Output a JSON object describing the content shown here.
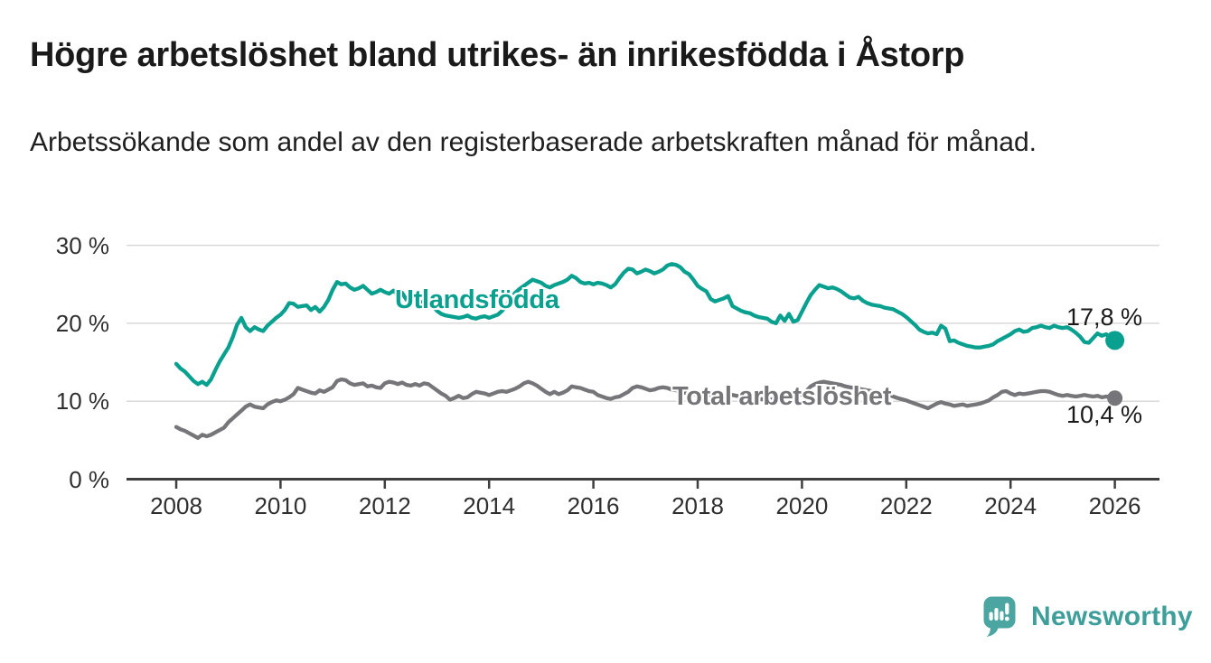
{
  "header": {
    "title": "Högre arbetslöshet bland utrikes- än inrikesfödda i Åstorp",
    "subtitle": "Arbetssökande som andel av den registerbaserade arbetskraften månad för månad."
  },
  "chart_data": {
    "type": "line",
    "title": "Högre arbetslöshet bland utrikes- än inrikesfödda i Åstorp",
    "subtitle": "Arbetssökande som andel av den registerbaserade arbetskraften månad för månad.",
    "unit": "%",
    "x_start_year": 2008,
    "x_step_months": 1,
    "x_end_label": "2026",
    "x_ticks": [
      2008,
      2010,
      2012,
      2014,
      2016,
      2018,
      2020,
      2022,
      2024,
      2026
    ],
    "y_ticks": [
      {
        "value": 0,
        "label": "0 %"
      },
      {
        "value": 10,
        "label": "10 %"
      },
      {
        "value": 20,
        "label": "20 %"
      },
      {
        "value": 30,
        "label": "30 %"
      }
    ],
    "ylim": [
      0,
      31
    ],
    "grid": "horizontal",
    "legend": "inline-labels",
    "axis_color": "#3e3e3e",
    "grid_color": "#d9d9d9",
    "series": [
      {
        "name": "Total arbetslöshet",
        "color": "#76767a",
        "end_label": "10,4 %",
        "end_value": 10.4,
        "dot_radius": 8.5,
        "values": [
          6.7,
          6.4,
          6.2,
          5.9,
          5.6,
          5.3,
          5.7,
          5.5,
          5.7,
          6.0,
          6.3,
          6.6,
          7.3,
          7.8,
          8.3,
          8.8,
          9.3,
          9.6,
          9.3,
          9.2,
          9.1,
          9.6,
          9.9,
          10.1,
          10.0,
          10.2,
          10.5,
          10.9,
          11.7,
          11.5,
          11.3,
          11.1,
          11.0,
          11.4,
          11.2,
          11.5,
          11.8,
          12.6,
          12.8,
          12.7,
          12.3,
          12.1,
          12.2,
          12.3,
          11.9,
          12.0,
          11.8,
          11.7,
          12.3,
          12.5,
          12.4,
          12.2,
          12.4,
          12.1,
          12.0,
          12.2,
          12.0,
          12.3,
          12.2,
          11.8,
          11.4,
          11.0,
          10.7,
          10.2,
          10.4,
          10.7,
          10.4,
          10.5,
          10.9,
          11.2,
          11.1,
          11.0,
          10.8,
          11.0,
          11.2,
          11.3,
          11.2,
          11.4,
          11.6,
          11.9,
          12.3,
          12.5,
          12.3,
          12.0,
          11.6,
          11.2,
          10.9,
          11.2,
          10.9,
          11.1,
          11.4,
          11.9,
          11.8,
          11.7,
          11.5,
          11.3,
          11.2,
          10.8,
          10.6,
          10.4,
          10.3,
          10.5,
          10.6,
          10.9,
          11.2,
          11.7,
          11.9,
          11.8,
          11.6,
          11.4,
          11.5,
          11.7,
          11.8,
          11.7,
          11.5,
          11.4,
          11.3,
          11.1,
          11.0,
          10.9,
          10.8,
          10.75,
          10.7,
          10.65,
          10.6,
          10.65,
          10.7,
          10.75,
          10.8,
          10.7,
          10.6,
          10.55,
          10.5,
          10.4,
          10.3,
          10.25,
          10.2,
          10.25,
          10.3,
          10.35,
          10.4,
          10.5,
          10.6,
          10.7,
          10.9,
          11.3,
          11.9,
          12.2,
          12.4,
          12.5,
          12.4,
          12.3,
          12.2,
          12.1,
          11.9,
          11.8,
          11.7,
          11.6,
          11.5,
          11.4,
          11.3,
          11.2,
          11.1,
          10.95,
          10.8,
          10.6,
          10.4,
          10.25,
          10.1,
          9.9,
          9.7,
          9.5,
          9.3,
          9.1,
          9.4,
          9.7,
          9.9,
          9.7,
          9.6,
          9.4,
          9.5,
          9.6,
          9.4,
          9.5,
          9.6,
          9.7,
          9.9,
          10.1,
          10.5,
          10.8,
          11.2,
          11.3,
          11.0,
          10.8,
          11.0,
          10.9,
          11.0,
          11.1,
          11.2,
          11.3,
          11.3,
          11.2,
          11.0,
          10.8,
          10.7,
          10.8,
          10.7,
          10.6,
          10.7,
          10.8,
          10.7,
          10.6,
          10.7,
          10.5,
          10.6,
          10.5,
          10.4
        ]
      },
      {
        "name": "Utlandsfödda",
        "color": "#0aa08f",
        "end_label": "17,8 %",
        "end_value": 17.8,
        "dot_radius": 10.5,
        "values": [
          14.8,
          14.2,
          13.8,
          13.2,
          12.6,
          12.2,
          12.5,
          12.1,
          12.8,
          14.0,
          15.1,
          16.0,
          16.9,
          18.2,
          19.8,
          20.7,
          19.5,
          19.0,
          19.5,
          19.2,
          19.0,
          19.7,
          20.2,
          20.7,
          21.1,
          21.7,
          22.6,
          22.5,
          22.1,
          22.2,
          22.3,
          21.7,
          22.1,
          21.5,
          22.1,
          23.0,
          24.3,
          25.3,
          25.0,
          25.1,
          24.6,
          24.3,
          24.5,
          24.8,
          24.3,
          23.8,
          24.0,
          24.3,
          24.0,
          23.8,
          24.2,
          23.6,
          23.9,
          23.0,
          22.8,
          23.3,
          22.6,
          22.8,
          22.4,
          22.2,
          21.6,
          21.2,
          21.0,
          20.9,
          20.8,
          20.7,
          20.8,
          21.0,
          20.7,
          20.6,
          20.8,
          20.9,
          20.7,
          20.9,
          21.1,
          21.6,
          22.3,
          23.2,
          23.9,
          24.4,
          24.8,
          25.2,
          25.6,
          25.4,
          25.2,
          24.8,
          24.6,
          24.9,
          25.1,
          25.3,
          25.6,
          26.1,
          25.8,
          25.3,
          25.1,
          25.2,
          25.0,
          25.2,
          25.1,
          24.9,
          24.6,
          25.0,
          25.8,
          26.5,
          27.0,
          26.9,
          26.4,
          26.6,
          26.9,
          26.7,
          26.4,
          26.6,
          26.9,
          27.4,
          27.6,
          27.5,
          27.2,
          26.6,
          26.3,
          25.6,
          24.8,
          24.4,
          24.1,
          23.1,
          22.8,
          23.0,
          23.2,
          23.5,
          22.2,
          21.9,
          21.6,
          21.4,
          21.3,
          21.0,
          20.8,
          20.7,
          20.6,
          20.2,
          20.0,
          21.0,
          20.3,
          21.2,
          20.2,
          20.4,
          21.5,
          22.6,
          23.6,
          24.3,
          24.9,
          24.7,
          24.5,
          24.6,
          24.4,
          24.1,
          23.7,
          23.3,
          23.2,
          23.4,
          22.9,
          22.6,
          22.4,
          22.3,
          22.2,
          22.0,
          21.9,
          21.8,
          21.5,
          21.2,
          20.8,
          20.3,
          19.8,
          19.2,
          18.9,
          18.7,
          18.8,
          18.6,
          19.7,
          19.3,
          17.7,
          17.8,
          17.5,
          17.3,
          17.1,
          17.0,
          16.9,
          16.9,
          17.0,
          17.1,
          17.3,
          17.7,
          18.0,
          18.3,
          18.6,
          19.0,
          19.2,
          18.9,
          19.0,
          19.4,
          19.5,
          19.7,
          19.5,
          19.4,
          19.7,
          19.5,
          19.4,
          19.5,
          19.2,
          18.8,
          18.3,
          17.6,
          17.5,
          18.1,
          18.7,
          18.4,
          18.6,
          18.1,
          17.8
        ]
      }
    ]
  },
  "footer": {
    "brand": "Newsworthy",
    "brand_color": "#3d9e9a",
    "icon_color": "#4ba6a1",
    "logo_icon": "speech-bubble-bar-chart-icon"
  }
}
